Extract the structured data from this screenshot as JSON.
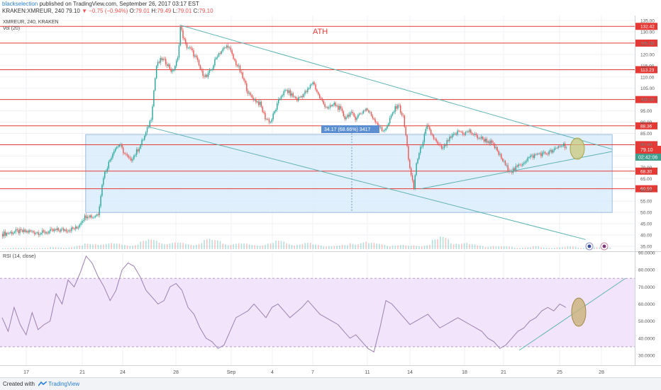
{
  "header": {
    "author": "blackselection",
    "published_text": "published on TradingView.com, September 26, 2017 03:17 EST",
    "symbol": "KRAKEN:XMREUR, 240",
    "last": "79.10",
    "change": "▼ −0.75 (−0.94%)",
    "o_label": "O:",
    "o": "79.01",
    "h_label": "H:",
    "h": "79.49",
    "l_label": "L:",
    "l": "79.01",
    "c_label": "C:",
    "c": "79.10"
  },
  "footer": {
    "created_with": "Created with",
    "brand": "TradingView"
  },
  "colors": {
    "up": "#26a69a",
    "down": "#ef5350",
    "hline": "#e53935",
    "trend": "#5fb3b3",
    "box": "#d6e9fb",
    "rsi": "#9c7fb0",
    "rsi_band": "#f1e2fb"
  },
  "chart_data": [
    {
      "type": "candlestick",
      "legend": "XMREUR, 240, KRAKEN",
      "volume_legend": "Vol (20)",
      "annotation": "ATH",
      "measure_label": "34.17 (68.66%) 3417",
      "x_ticks": [
        "17",
        "21",
        "24",
        "28",
        "Sep",
        "4",
        "7",
        "11",
        "14",
        "18",
        "21",
        "25",
        "28"
      ],
      "y_ticks": [
        "135.00",
        "130.00",
        "125.00",
        "120.00",
        "115.00",
        "110.00",
        "105.00",
        "100.00",
        "95.00",
        "90.00",
        "85.00",
        "80.00",
        "75.00",
        "70.00",
        "65.00",
        "60.00",
        "55.00",
        "50.00",
        "45.00",
        "40.00",
        "35.00"
      ],
      "ylim": [
        33,
        136
      ],
      "horizontal_levels": [
        {
          "value": 132.42,
          "label": "132.42"
        },
        {
          "value": 125.0,
          "label": "125.00"
        },
        {
          "value": 113.23,
          "label": "113.23"
        },
        {
          "value": 100.0,
          "label": "100.00"
        },
        {
          "value": 88.36,
          "label": "88.36"
        },
        {
          "value": 80.0,
          "label": "80.00"
        },
        {
          "value": 68.3,
          "label": "68.30"
        },
        {
          "value": 60.5,
          "label": "60.50"
        }
      ],
      "price_tag": {
        "value": 79.1,
        "label": "79.10",
        "countdown": "02:42:06"
      },
      "close_path": [
        [
          0,
          40.5
        ],
        [
          10,
          41.5
        ],
        [
          20,
          41.5
        ],
        [
          30,
          41
        ],
        [
          40,
          42
        ],
        [
          50,
          42.5
        ],
        [
          56,
          43
        ],
        [
          60,
          47
        ],
        [
          64,
          49
        ],
        [
          68,
          48
        ],
        [
          72,
          49.5
        ],
        [
          74,
          58
        ],
        [
          76,
          66
        ],
        [
          80,
          72
        ],
        [
          84,
          78
        ],
        [
          88,
          80
        ],
        [
          92,
          76
        ],
        [
          96,
          73
        ],
        [
          100,
          76
        ],
        [
          104,
          80
        ],
        [
          108,
          85
        ],
        [
          112,
          92
        ],
        [
          114,
          104
        ],
        [
          116,
          115
        ],
        [
          120,
          118
        ],
        [
          124,
          116
        ],
        [
          128,
          112
        ],
        [
          132,
          118
        ],
        [
          134,
          132
        ],
        [
          138,
          124
        ],
        [
          142,
          122
        ],
        [
          146,
          118
        ],
        [
          150,
          112
        ],
        [
          154,
          110
        ],
        [
          158,
          114
        ],
        [
          162,
          120
        ],
        [
          166,
          122
        ],
        [
          170,
          124
        ],
        [
          174,
          118
        ],
        [
          178,
          114
        ],
        [
          182,
          108
        ],
        [
          186,
          102
        ],
        [
          190,
          100
        ],
        [
          194,
          98
        ],
        [
          198,
          92
        ],
        [
          202,
          90
        ],
        [
          206,
          96
        ],
        [
          210,
          102
        ],
        [
          214,
          104
        ],
        [
          218,
          102
        ],
        [
          222,
          100
        ],
        [
          226,
          102
        ],
        [
          230,
          104
        ],
        [
          234,
          108
        ],
        [
          238,
          102
        ],
        [
          242,
          98
        ],
        [
          246,
          96
        ],
        [
          250,
          98
        ],
        [
          254,
          96
        ],
        [
          258,
          92
        ],
        [
          262,
          94
        ],
        [
          266,
          92
        ],
        [
          270,
          94
        ],
        [
          274,
          96
        ],
        [
          278,
          93
        ],
        [
          282,
          90
        ],
        [
          286,
          86
        ],
        [
          290,
          88
        ],
        [
          294,
          94
        ],
        [
          298,
          98
        ],
        [
          302,
          92
        ],
        [
          304,
          84
        ],
        [
          306,
          74
        ],
        [
          308,
          66
        ],
        [
          310,
          60.5
        ],
        [
          312,
          72
        ],
        [
          316,
          80
        ],
        [
          320,
          88
        ],
        [
          324,
          84
        ],
        [
          328,
          80
        ],
        [
          332,
          78
        ],
        [
          336,
          82
        ],
        [
          340,
          84
        ],
        [
          344,
          86
        ],
        [
          348,
          85
        ],
        [
          352,
          86
        ],
        [
          356,
          84
        ],
        [
          360,
          83
        ],
        [
          364,
          82
        ],
        [
          368,
          81
        ],
        [
          372,
          78
        ],
        [
          376,
          74
        ],
        [
          380,
          70
        ],
        [
          384,
          68.5
        ],
        [
          388,
          70
        ],
        [
          392,
          72
        ],
        [
          396,
          74
        ],
        [
          400,
          75
        ],
        [
          404,
          76
        ],
        [
          408,
          76
        ],
        [
          412,
          76.5
        ],
        [
          416,
          77.5
        ],
        [
          420,
          79.5
        ],
        [
          423,
          80
        ],
        [
          425,
          79.1
        ]
      ],
      "volume_profile": [
        2,
        2,
        2,
        2,
        2,
        3,
        3,
        4,
        5,
        8,
        10,
        9,
        8,
        7,
        8,
        12,
        14,
        12,
        10,
        9,
        8,
        11,
        15,
        13,
        10,
        9,
        8,
        7,
        8,
        9,
        12,
        10,
        8,
        9,
        7,
        6,
        5,
        6,
        10,
        12,
        9,
        8,
        7,
        6,
        5,
        6,
        7,
        14,
        18,
        12,
        9,
        7,
        6,
        5,
        4,
        4,
        3,
        3,
        4,
        3,
        3,
        3,
        4,
        3,
        3,
        3,
        3
      ],
      "trendlines": [
        {
          "from": [
            134,
            133
          ],
          "to": [
            460,
            78
          ]
        },
        {
          "from": [
            110,
            88
          ],
          "to": [
            440,
            38
          ]
        },
        {
          "from": [
            316,
            60.5
          ],
          "to": [
            460,
            77
          ]
        }
      ],
      "range_box": {
        "x0": 63,
        "x1": 460,
        "y0": 50,
        "y1": 84.5
      }
    },
    {
      "type": "line",
      "legend": "RSI (14, close)",
      "y_ticks": [
        "90.0000",
        "80.0000",
        "70.0000",
        "60.0000",
        "50.0000",
        "40.0000",
        "30.0000"
      ],
      "ylim": [
        26,
        90
      ],
      "band": [
        35,
        75
      ],
      "values": [
        52,
        44,
        58,
        48,
        42,
        55,
        45,
        48,
        50,
        66,
        60,
        74,
        70,
        78,
        88,
        84,
        76,
        70,
        62,
        68,
        80,
        84,
        82,
        76,
        68,
        64,
        60,
        62,
        70,
        72,
        68,
        58,
        54,
        46,
        40,
        38,
        34,
        36,
        44,
        52,
        54,
        56,
        60,
        56,
        52,
        58,
        60,
        56,
        52,
        55,
        58,
        62,
        58,
        54,
        52,
        50,
        48,
        44,
        40,
        42,
        38,
        34,
        32,
        46,
        62,
        60,
        56,
        52,
        48,
        50,
        52,
        54,
        50,
        46,
        48,
        50,
        52,
        50,
        48,
        46,
        44,
        40,
        38,
        34,
        36,
        40,
        44,
        46,
        50,
        52,
        56,
        58,
        56,
        60,
        58
      ],
      "trendline": {
        "from": [
          390,
          33
        ],
        "to": [
          470,
          75
        ]
      }
    }
  ]
}
